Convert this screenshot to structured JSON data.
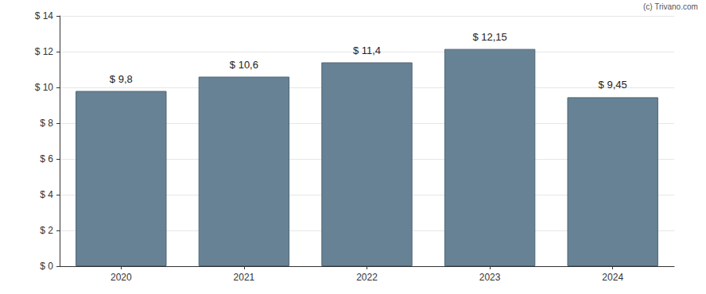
{
  "chart_data": {
    "type": "bar",
    "annotation": "(c) Trivano.com",
    "categories": [
      "2020",
      "2021",
      "2022",
      "2023",
      "2024"
    ],
    "values": [
      9.8,
      10.6,
      11.4,
      12.15,
      9.45
    ],
    "value_labels": [
      "$ 9,8",
      "$ 10,6",
      "$ 11,4",
      "$ 12,15",
      "$ 9,45"
    ],
    "data_labels": true,
    "color": "#678294",
    "ylim": [
      0,
      14
    ],
    "yticks": [
      {
        "value": 0,
        "label": "$ 0"
      },
      {
        "value": 2,
        "label": "$ 2"
      },
      {
        "value": 4,
        "label": "$ 4"
      },
      {
        "value": 6,
        "label": "$ 6"
      },
      {
        "value": 8,
        "label": "$ 8"
      },
      {
        "value": 10,
        "label": "$ 10"
      },
      {
        "value": 12,
        "label": "$ 12"
      },
      {
        "value": 14,
        "label": "$ 14"
      }
    ],
    "grid": true
  }
}
